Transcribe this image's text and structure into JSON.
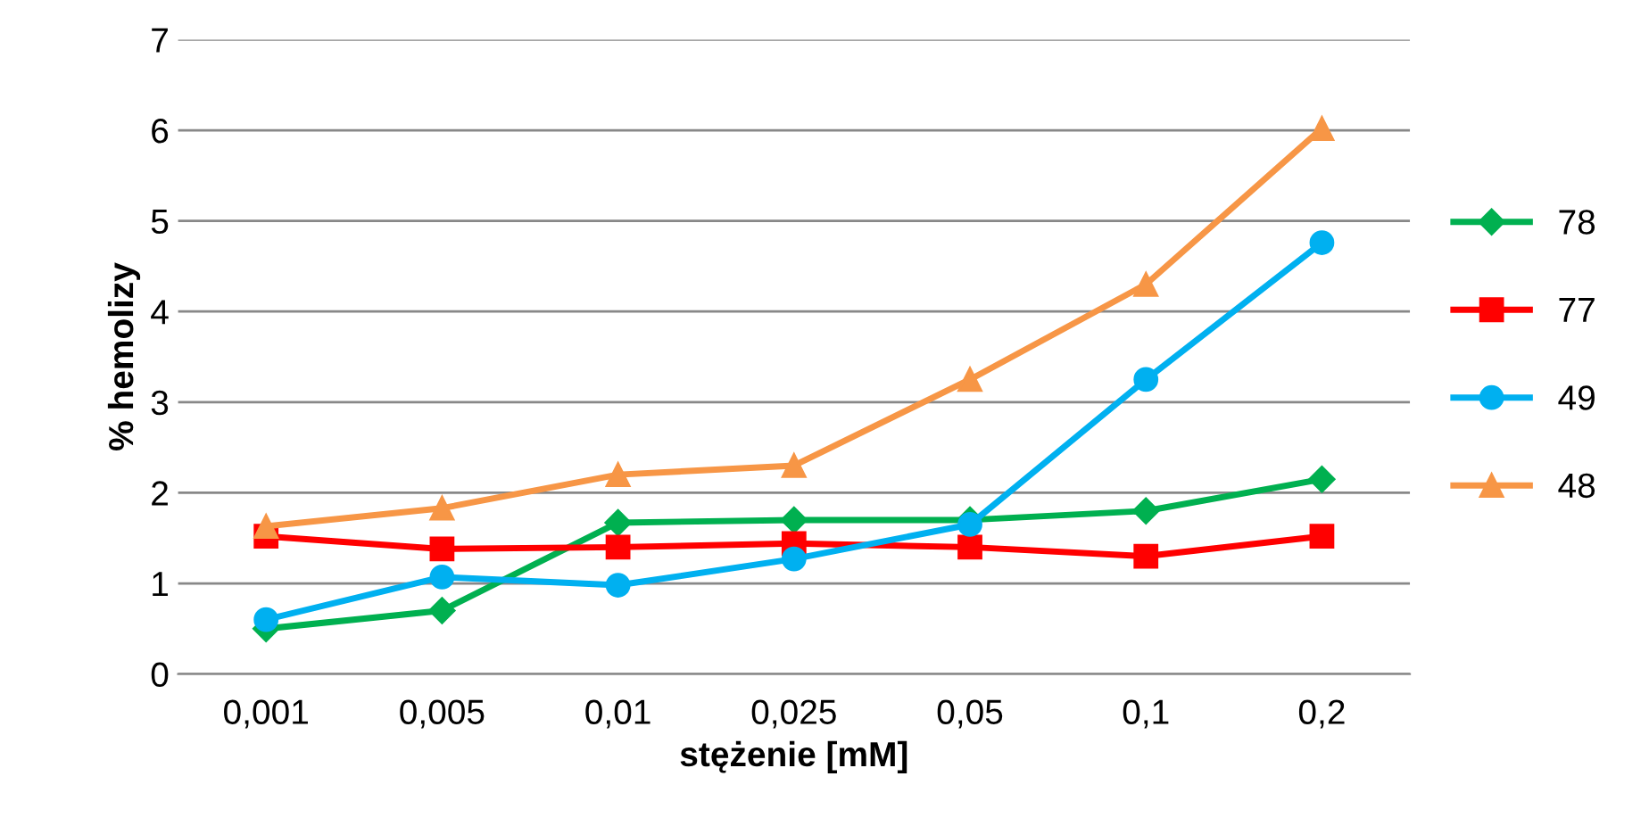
{
  "chart_data": {
    "type": "line",
    "xlabel": "stężenie [mM]",
    "ylabel": "% hemolizy",
    "categories": [
      "0,001",
      "0,005",
      "0,01",
      "0,025",
      "0,05",
      "0,1",
      "0,2"
    ],
    "series": [
      {
        "name": "78",
        "color": "#00b050",
        "marker": "diamond",
        "values": [
          0.5,
          0.7,
          1.67,
          1.7,
          1.7,
          1.8,
          2.15
        ]
      },
      {
        "name": "77",
        "color": "#ff0000",
        "marker": "square",
        "values": [
          1.52,
          1.38,
          1.4,
          1.44,
          1.4,
          1.3,
          1.52
        ]
      },
      {
        "name": "49",
        "color": "#00b0f0",
        "marker": "circle",
        "values": [
          0.6,
          1.07,
          0.98,
          1.27,
          1.65,
          3.25,
          4.76
        ]
      },
      {
        "name": "48",
        "color": "#f79646",
        "marker": "triangle",
        "values": [
          1.63,
          1.83,
          2.2,
          2.3,
          3.25,
          4.3,
          6.02
        ]
      }
    ],
    "ylim": [
      0,
      7
    ],
    "yticks": [
      0,
      1,
      2,
      3,
      4,
      5,
      6,
      7
    ],
    "grid": "y",
    "legend": "right",
    "line_style": "solid"
  }
}
